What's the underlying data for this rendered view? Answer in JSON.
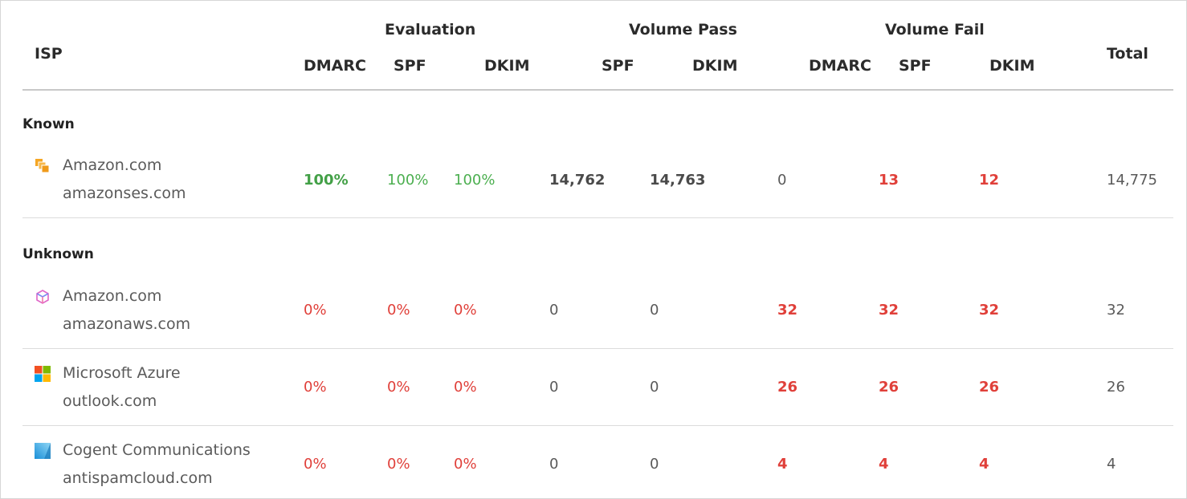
{
  "header": {
    "isp": "ISP",
    "total": "Total",
    "groups": {
      "evaluation": "Evaluation",
      "volume_pass": "Volume Pass",
      "volume_fail": "Volume Fail"
    },
    "eval_cols": [
      "DMARC",
      "SPF",
      "DKIM"
    ],
    "pass_cols": [
      "SPF",
      "DKIM"
    ],
    "fail_cols": [
      "DMARC",
      "SPF",
      "DKIM"
    ]
  },
  "sections": [
    {
      "label": "Known",
      "rows": [
        {
          "icon": "amazon-stack-icon",
          "isp_name": "Amazon.com",
          "domain": "amazonses.com",
          "eval": [
            "100%",
            "100%",
            "100%"
          ],
          "volume_pass": [
            "14,762",
            "14,763"
          ],
          "volume_fail": [
            "0",
            "13",
            "12"
          ],
          "total": "14,775"
        }
      ]
    },
    {
      "label": "Unknown",
      "rows": [
        {
          "icon": "cube-icon",
          "isp_name": "Amazon.com",
          "domain": "amazonaws.com",
          "eval": [
            "0%",
            "0%",
            "0%"
          ],
          "volume_pass": [
            "0",
            "0"
          ],
          "volume_fail": [
            "32",
            "32",
            "32"
          ],
          "total": "32"
        },
        {
          "icon": "microsoft-logo-icon",
          "isp_name": "Microsoft Azure",
          "domain": "outlook.com",
          "eval": [
            "0%",
            "0%",
            "0%"
          ],
          "volume_pass": [
            "0",
            "0"
          ],
          "volume_fail": [
            "26",
            "26",
            "26"
          ],
          "total": "26"
        },
        {
          "icon": "cogent-icon",
          "isp_name": "Cogent Communications",
          "domain": "antispamcloud.com",
          "eval": [
            "0%",
            "0%",
            "0%"
          ],
          "volume_pass": [
            "0",
            "0"
          ],
          "volume_fail": [
            "4",
            "4",
            "4"
          ],
          "total": "4"
        }
      ]
    }
  ],
  "colors": {
    "pass": "#4caf50",
    "fail": "#e0403a",
    "divider": "#dcdcdc"
  }
}
